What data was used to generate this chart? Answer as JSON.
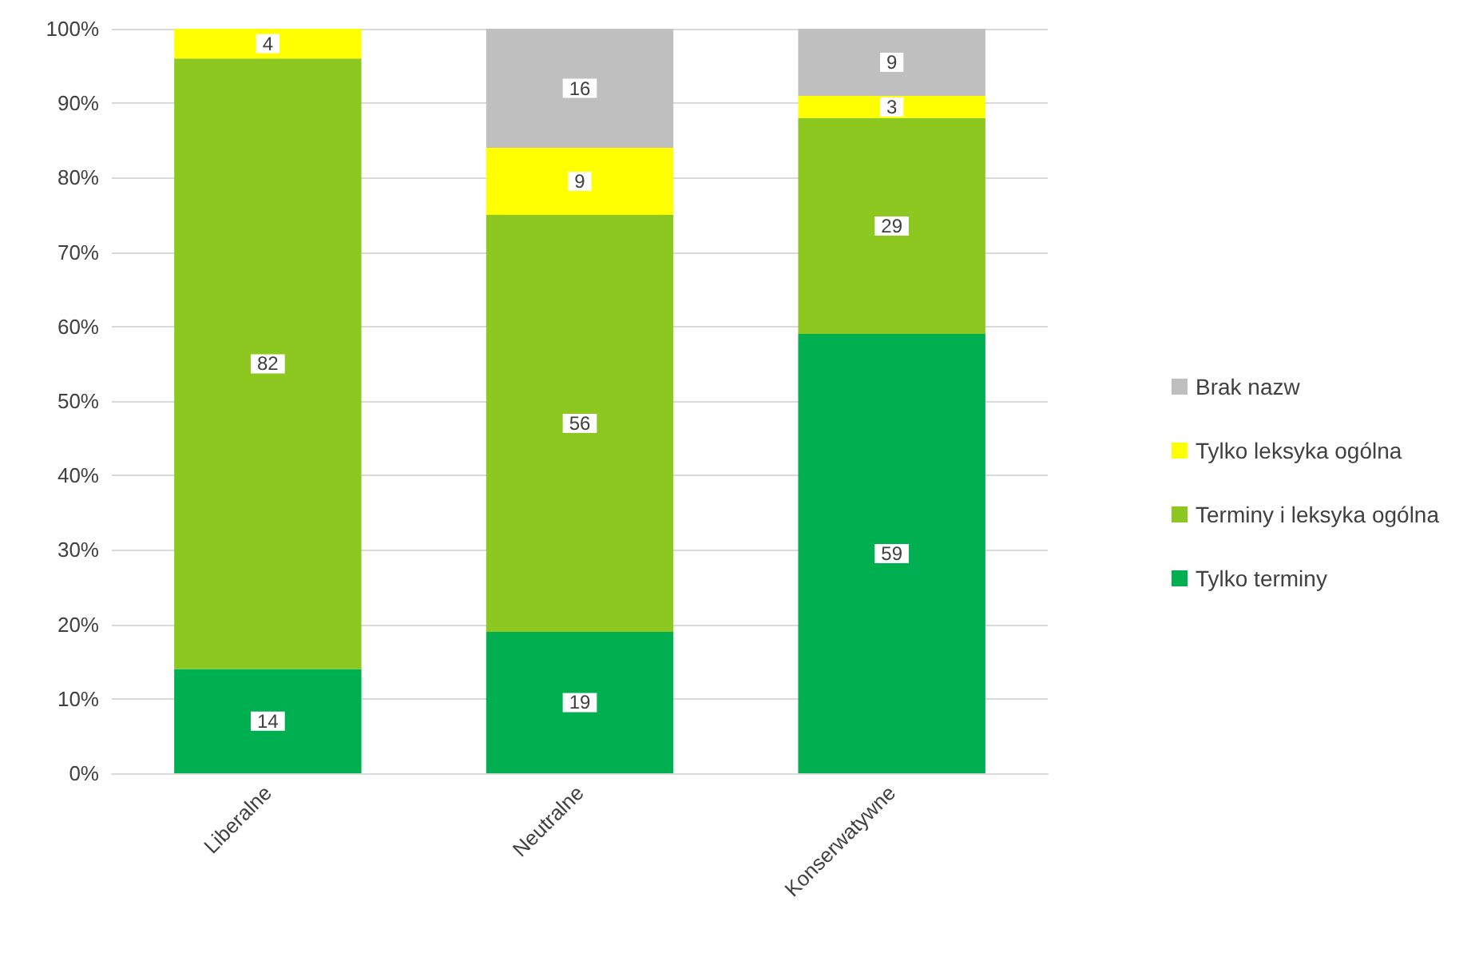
{
  "chart_data": {
    "type": "bar",
    "stacked": true,
    "categories": [
      "Liberalne",
      "Neutralne",
      "Konserwatywne"
    ],
    "series": [
      {
        "name": "Tylko terminy",
        "color": "#00b050",
        "values": [
          14,
          19,
          59
        ]
      },
      {
        "name": "Terminy i leksyka ogólna",
        "color": "#8cc820",
        "values": [
          82,
          56,
          29
        ]
      },
      {
        "name": "Tylko leksyka ogólna",
        "color": "#ffff00",
        "values": [
          4,
          9,
          3
        ]
      },
      {
        "name": "Brak nazw",
        "color": "#bfbfbf",
        "values": [
          null,
          16,
          9
        ]
      }
    ],
    "ylim": [
      0,
      100
    ],
    "yticks": [
      {
        "value": 0,
        "label": "0%"
      },
      {
        "value": 10,
        "label": "10%"
      },
      {
        "value": 20,
        "label": "20%"
      },
      {
        "value": 30,
        "label": "30%"
      },
      {
        "value": 40,
        "label": "40%"
      },
      {
        "value": 50,
        "label": "50%"
      },
      {
        "value": 60,
        "label": "60%"
      },
      {
        "value": 70,
        "label": "70%"
      },
      {
        "value": 80,
        "label": "80%"
      },
      {
        "value": 90,
        "label": "90%"
      },
      {
        "value": 100,
        "label": "100%"
      }
    ],
    "grid": "y",
    "legend": "right",
    "data_labels": true
  }
}
